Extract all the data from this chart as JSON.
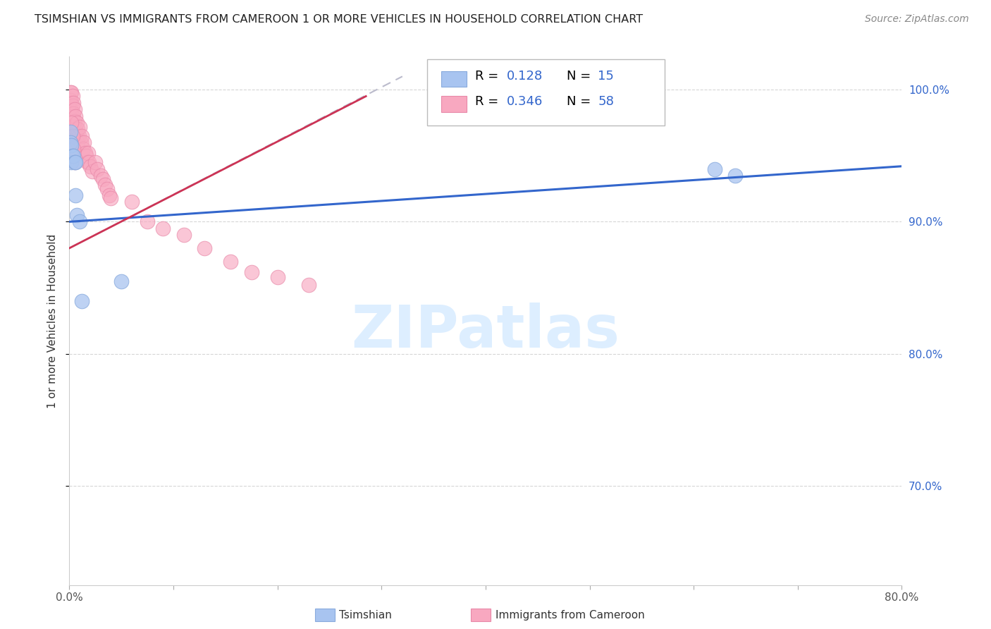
{
  "title": "TSIMSHIAN VS IMMIGRANTS FROM CAMEROON 1 OR MORE VEHICLES IN HOUSEHOLD CORRELATION CHART",
  "source": "Source: ZipAtlas.com",
  "ylabel": "1 or more Vehicles in Household",
  "xmin": 0.0,
  "xmax": 0.8,
  "ymin": 0.625,
  "ymax": 1.025,
  "tsimshian_color": "#a8c4f0",
  "tsimshian_edge": "#88aadd",
  "cameroon_color": "#f8a8c0",
  "cameroon_edge": "#e888a8",
  "line_tsimshian_color": "#3366cc",
  "line_cameroon_color": "#cc3355",
  "line_cameroon_dash_color": "#bbbbcc",
  "watermark_color": "#ddeeff",
  "legend_text_color": "#3366cc",
  "r1_text": "R =  0.128",
  "n1_text": "N = 15",
  "r2_text": "R =  0.346",
  "n2_text": "N = 58",
  "tsimshian_label": "Tsimshian",
  "cameroon_label": "Immigrants from Cameroon",
  "ytick_color": "#3366cc",
  "title_color": "#222222",
  "source_color": "#888888",
  "grid_color": "#cccccc",
  "tsimshian_x": [
    0.001,
    0.001,
    0.002,
    0.002,
    0.003,
    0.004,
    0.005,
    0.006,
    0.006,
    0.007,
    0.01,
    0.012,
    0.05,
    0.62,
    0.64
  ],
  "tsimshian_y": [
    0.968,
    0.96,
    0.958,
    0.945,
    0.95,
    0.95,
    0.945,
    0.945,
    0.92,
    0.905,
    0.9,
    0.84,
    0.855,
    0.94,
    0.935
  ],
  "cameroon_x": [
    0.001,
    0.001,
    0.001,
    0.002,
    0.002,
    0.002,
    0.002,
    0.003,
    0.003,
    0.003,
    0.003,
    0.004,
    0.004,
    0.004,
    0.005,
    0.005,
    0.005,
    0.006,
    0.006,
    0.007,
    0.007,
    0.008,
    0.008,
    0.009,
    0.01,
    0.011,
    0.012,
    0.013,
    0.014,
    0.015,
    0.016,
    0.017,
    0.018,
    0.019,
    0.02,
    0.022,
    0.025,
    0.027,
    0.03,
    0.032,
    0.034,
    0.036,
    0.038,
    0.04,
    0.001,
    0.002,
    0.003,
    0.004,
    0.005,
    0.06,
    0.075,
    0.09,
    0.11,
    0.13,
    0.155,
    0.175,
    0.2,
    0.23
  ],
  "cameroon_y": [
    0.998,
    0.992,
    0.985,
    0.998,
    0.99,
    0.982,
    0.97,
    0.995,
    0.988,
    0.98,
    0.968,
    0.99,
    0.982,
    0.972,
    0.985,
    0.976,
    0.966,
    0.98,
    0.97,
    0.975,
    0.965,
    0.97,
    0.96,
    0.965,
    0.972,
    0.96,
    0.965,
    0.955,
    0.96,
    0.952,
    0.95,
    0.945,
    0.952,
    0.945,
    0.942,
    0.938,
    0.945,
    0.94,
    0.935,
    0.932,
    0.928,
    0.925,
    0.92,
    0.918,
    0.96,
    0.975,
    0.965,
    0.955,
    0.945,
    0.915,
    0.9,
    0.895,
    0.89,
    0.88,
    0.87,
    0.862,
    0.858,
    0.852
  ],
  "blue_line_x0": 0.0,
  "blue_line_x1": 0.8,
  "blue_line_y0": 0.9,
  "blue_line_y1": 0.942,
  "pink_line_x0": 0.0,
  "pink_line_x1": 0.285,
  "pink_line_y0": 0.88,
  "pink_line_y1": 0.995,
  "dash_line_x0": 0.0,
  "dash_line_x1": 0.32,
  "dash_line_y0": 0.88,
  "dash_line_y1": 1.01
}
